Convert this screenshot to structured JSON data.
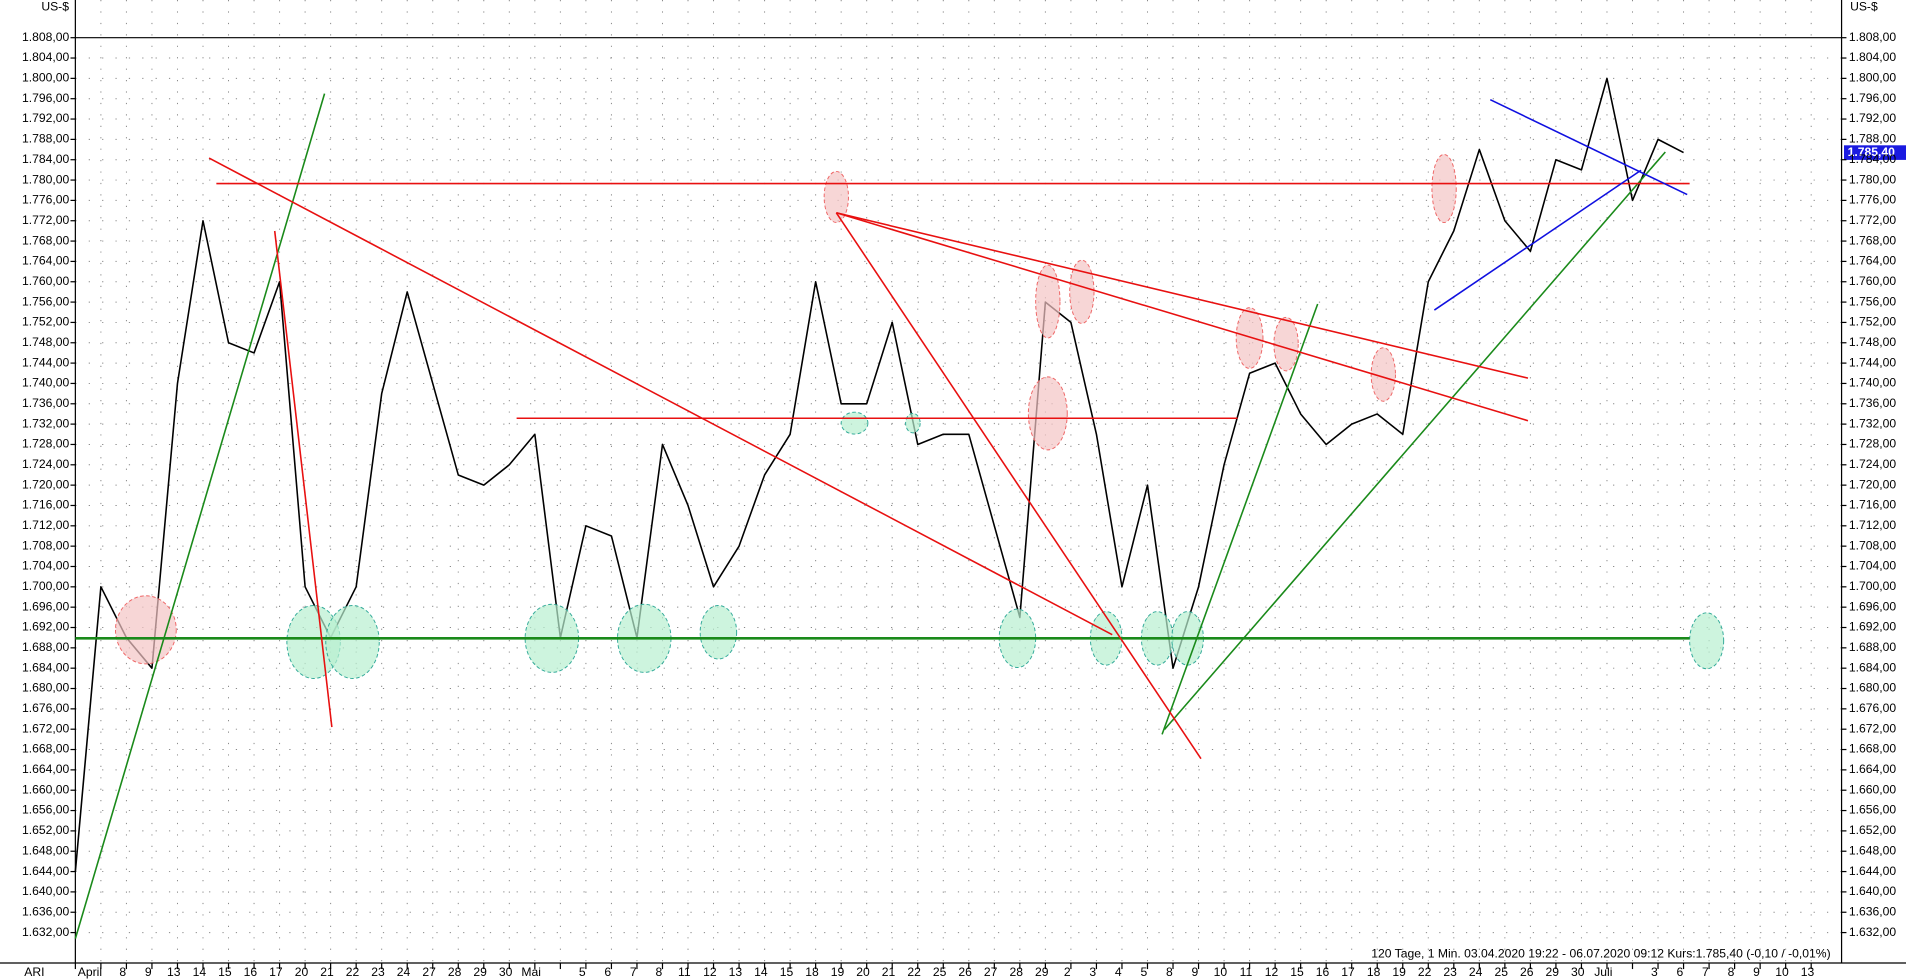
{
  "chart_data": {
    "type": "line",
    "y_label": "US-$",
    "instrument": "ARI",
    "footer": "120 Tage, 1 Min. 03.04.2020 19:22 - 06.07.2020 09:12 Kurs:1.785,40 (-0,10 / -0,01%)",
    "price_label": "1.785,40",
    "color": "#000000",
    "grid": true,
    "categories": [
      "April",
      null,
      "8",
      "9",
      "13",
      "14",
      "15",
      "16",
      "17",
      "20",
      "21",
      "22",
      "23",
      "24",
      "27",
      "28",
      "29",
      "30",
      "Mai",
      null,
      "5",
      "6",
      "7",
      "8",
      "11",
      "12",
      "13",
      "14",
      "15",
      "18",
      "19",
      "20",
      "21",
      "22",
      "25",
      "26",
      "27",
      "28",
      "29",
      "2",
      "3",
      "4",
      "5",
      "8",
      "9",
      "10",
      "11",
      "12",
      "15",
      "16",
      "17",
      "18",
      "19",
      "22",
      "23",
      "24",
      "25",
      "26",
      "29",
      "30",
      "Juli",
      null,
      "3",
      "6",
      "7",
      "8",
      "9",
      "10",
      "13"
    ],
    "values": [
      1644,
      1700,
      1690,
      1684,
      1740,
      1772,
      1748,
      1746,
      1760,
      1700,
      1690,
      1700,
      1738,
      1758,
      1740,
      1722,
      1720,
      1724,
      1730,
      1690,
      1712,
      1710,
      1690,
      1728,
      1716,
      1700,
      1708,
      1722,
      1730,
      1760,
      1736,
      1736,
      1752,
      1728,
      1730,
      1730,
      1712,
      1694,
      1756,
      1752,
      1730,
      1700,
      1720,
      1684,
      1700,
      1724,
      1742,
      1744,
      1734,
      1728,
      1732,
      1734,
      1730,
      1760,
      1770,
      1786,
      1772,
      1766,
      1784,
      1782,
      1800,
      1776,
      1788,
      1785.4,
      null,
      null,
      null,
      null,
      null
    ],
    "ylim": [
      1630,
      1810
    ],
    "yticks": [
      {
        "value": 1632,
        "label": "1.632,00"
      },
      {
        "value": 1636,
        "label": "1.636,00"
      },
      {
        "value": 1640,
        "label": "1.640,00"
      },
      {
        "value": 1644,
        "label": "1.644,00"
      },
      {
        "value": 1648,
        "label": "1.648,00"
      },
      {
        "value": 1652,
        "label": "1.652,00"
      },
      {
        "value": 1656,
        "label": "1.656,00"
      },
      {
        "value": 1660,
        "label": "1.660,00"
      },
      {
        "value": 1664,
        "label": "1.664,00"
      },
      {
        "value": 1668,
        "label": "1.668,00"
      },
      {
        "value": 1672,
        "label": "1.672,00"
      },
      {
        "value": 1676,
        "label": "1.676,00"
      },
      {
        "value": 1680,
        "label": "1.680,00"
      },
      {
        "value": 1684,
        "label": "1.684,00"
      },
      {
        "value": 1688,
        "label": "1.688,00"
      },
      {
        "value": 1692,
        "label": "1.692,00"
      },
      {
        "value": 1696,
        "label": "1.696,00"
      },
      {
        "value": 1700,
        "label": "1.700,00"
      },
      {
        "value": 1704,
        "label": "1.704,00"
      },
      {
        "value": 1708,
        "label": "1.708,00"
      },
      {
        "value": 1712,
        "label": "1.712,00"
      },
      {
        "value": 1716,
        "label": "1.716,00"
      },
      {
        "value": 1720,
        "label": "1.720,00"
      },
      {
        "value": 1724,
        "label": "1.724,00"
      },
      {
        "value": 1728,
        "label": "1.728,00"
      },
      {
        "value": 1732,
        "label": "1.732,00"
      },
      {
        "value": 1736,
        "label": "1.736,00"
      },
      {
        "value": 1740,
        "label": "1.740,00"
      },
      {
        "value": 1744,
        "label": "1.744,00"
      },
      {
        "value": 1748,
        "label": "1.748,00"
      },
      {
        "value": 1752,
        "label": "1.752,00"
      },
      {
        "value": 1756,
        "label": "1.756,00"
      },
      {
        "value": 1760,
        "label": "1.760,00"
      },
      {
        "value": 1764,
        "label": "1.764,00"
      },
      {
        "value": 1768,
        "label": "1.768,00"
      },
      {
        "value": 1772,
        "label": "1.772,00"
      },
      {
        "value": 1776,
        "label": "1.776,00"
      },
      {
        "value": 1780,
        "label": "1.780,00"
      },
      {
        "value": 1784,
        "label": "1.784,00"
      },
      {
        "value": 1788,
        "label": "1.788,00"
      },
      {
        "value": 1792,
        "label": "1.792,00"
      },
      {
        "value": 1796,
        "label": "1.796,00"
      },
      {
        "value": 1800,
        "label": "1.800,00"
      },
      {
        "value": 1804,
        "label": "1.804,00"
      },
      {
        "value": 1808,
        "label": "1.808,00"
      }
    ]
  }
}
